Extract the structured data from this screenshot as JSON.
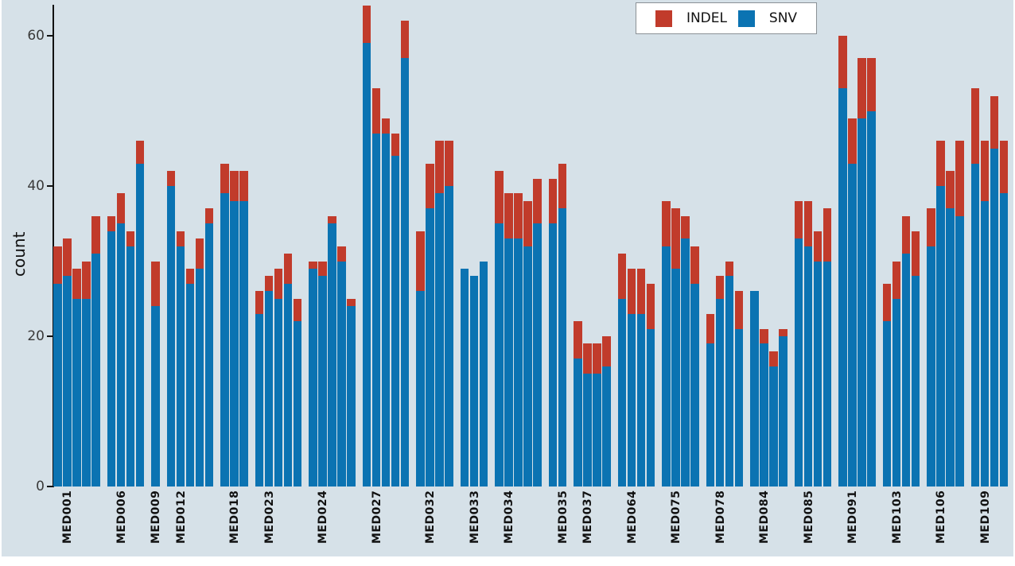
{
  "colors": {
    "background": "#d6e1e8",
    "indel": "#c13b2b",
    "snv": "#0b73b2",
    "axis": "#111111"
  },
  "legend": {
    "indel_label": "INDEL",
    "snv_label": "SNV"
  },
  "chart_data": {
    "type": "bar",
    "stacked": true,
    "title": "",
    "xlabel": "",
    "ylabel": "count",
    "ylim": [
      0,
      65
    ],
    "y_ticks": [
      0,
      20,
      40,
      60
    ],
    "grid": false,
    "legend_position": "top-right",
    "series_names": [
      "SNV",
      "INDEL"
    ],
    "groups": [
      {
        "label": "MED001",
        "bars": [
          {
            "snv": 27,
            "indel": 5
          },
          {
            "snv": 28,
            "indel": 5
          },
          {
            "snv": 25,
            "indel": 4
          },
          {
            "snv": 25,
            "indel": 5
          },
          {
            "snv": 31,
            "indel": 5
          }
        ]
      },
      {
        "label": "MED006",
        "bars": [
          {
            "snv": 34,
            "indel": 2
          },
          {
            "snv": 35,
            "indel": 4
          },
          {
            "snv": 32,
            "indel": 2
          },
          {
            "snv": 43,
            "indel": 3
          }
        ]
      },
      {
        "label": "MED009",
        "bars": [
          {
            "snv": 24,
            "indel": 6
          }
        ]
      },
      {
        "label": "MED012",
        "bars": [
          {
            "snv": 40,
            "indel": 2
          },
          {
            "snv": 32,
            "indel": 2
          },
          {
            "snv": 27,
            "indel": 2
          },
          {
            "snv": 29,
            "indel": 4
          },
          {
            "snv": 35,
            "indel": 2
          }
        ]
      },
      {
        "label": "MED018",
        "bars": [
          {
            "snv": 39,
            "indel": 4
          },
          {
            "snv": 38,
            "indel": 4
          },
          {
            "snv": 38,
            "indel": 4
          }
        ]
      },
      {
        "label": "MED023",
        "bars": [
          {
            "snv": 23,
            "indel": 3
          },
          {
            "snv": 26,
            "indel": 2
          },
          {
            "snv": 25,
            "indel": 4
          },
          {
            "snv": 27,
            "indel": 4
          },
          {
            "snv": 22,
            "indel": 3
          }
        ]
      },
      {
        "label": "MED024",
        "bars": [
          {
            "snv": 29,
            "indel": 1
          },
          {
            "snv": 28,
            "indel": 2
          },
          {
            "snv": 35,
            "indel": 1
          },
          {
            "snv": 30,
            "indel": 2
          },
          {
            "snv": 24,
            "indel": 1
          }
        ]
      },
      {
        "label": "MED027",
        "bars": [
          {
            "snv": 59,
            "indel": 5
          },
          {
            "snv": 47,
            "indel": 6
          },
          {
            "snv": 47,
            "indel": 2
          },
          {
            "snv": 44,
            "indel": 3
          },
          {
            "snv": 57,
            "indel": 5
          }
        ]
      },
      {
        "label": "MED032",
        "bars": [
          {
            "snv": 26,
            "indel": 8
          },
          {
            "snv": 37,
            "indel": 6
          },
          {
            "snv": 39,
            "indel": 7
          },
          {
            "snv": 40,
            "indel": 6
          }
        ]
      },
      {
        "label": "MED033",
        "bars": [
          {
            "snv": 29,
            "indel": 0
          },
          {
            "snv": 28,
            "indel": 0
          },
          {
            "snv": 30,
            "indel": 0
          }
        ]
      },
      {
        "label": "MED034",
        "bars": [
          {
            "snv": 35,
            "indel": 7
          },
          {
            "snv": 33,
            "indel": 6
          },
          {
            "snv": 33,
            "indel": 6
          },
          {
            "snv": 32,
            "indel": 6
          },
          {
            "snv": 35,
            "indel": 6
          }
        ]
      },
      {
        "label": "MED035",
        "bars": [
          {
            "snv": 35,
            "indel": 6
          },
          {
            "snv": 37,
            "indel": 6
          }
        ]
      },
      {
        "label": "MED037",
        "bars": [
          {
            "snv": 17,
            "indel": 5
          },
          {
            "snv": 15,
            "indel": 4
          },
          {
            "snv": 15,
            "indel": 4
          },
          {
            "snv": 16,
            "indel": 4
          }
        ]
      },
      {
        "label": "MED064",
        "bars": [
          {
            "snv": 25,
            "indel": 6
          },
          {
            "snv": 23,
            "indel": 6
          },
          {
            "snv": 23,
            "indel": 6
          },
          {
            "snv": 21,
            "indel": 6
          }
        ]
      },
      {
        "label": "MED075",
        "bars": [
          {
            "snv": 32,
            "indel": 6
          },
          {
            "snv": 29,
            "indel": 8
          },
          {
            "snv": 33,
            "indel": 3
          },
          {
            "snv": 27,
            "indel": 5
          }
        ]
      },
      {
        "label": "MED078",
        "bars": [
          {
            "snv": 19,
            "indel": 4
          },
          {
            "snv": 25,
            "indel": 3
          },
          {
            "snv": 28,
            "indel": 2
          },
          {
            "snv": 21,
            "indel": 5
          }
        ]
      },
      {
        "label": "MED084",
        "bars": [
          {
            "snv": 26,
            "indel": 0
          },
          {
            "snv": 19,
            "indel": 2
          },
          {
            "snv": 16,
            "indel": 2
          },
          {
            "snv": 20,
            "indel": 1
          }
        ]
      },
      {
        "label": "MED085",
        "bars": [
          {
            "snv": 33,
            "indel": 5
          },
          {
            "snv": 32,
            "indel": 6
          },
          {
            "snv": 30,
            "indel": 4
          },
          {
            "snv": 30,
            "indel": 7
          }
        ]
      },
      {
        "label": "MED091",
        "bars": [
          {
            "snv": 53,
            "indel": 7
          },
          {
            "snv": 43,
            "indel": 6
          },
          {
            "snv": 49,
            "indel": 8
          },
          {
            "snv": 50,
            "indel": 7
          }
        ]
      },
      {
        "label": "MED103",
        "bars": [
          {
            "snv": 22,
            "indel": 5
          },
          {
            "snv": 25,
            "indel": 5
          },
          {
            "snv": 31,
            "indel": 5
          },
          {
            "snv": 28,
            "indel": 6
          }
        ]
      },
      {
        "label": "MED106",
        "bars": [
          {
            "snv": 32,
            "indel": 5
          },
          {
            "snv": 40,
            "indel": 6
          },
          {
            "snv": 37,
            "indel": 5
          },
          {
            "snv": 36,
            "indel": 10
          }
        ]
      },
      {
        "label": "MED109",
        "bars": [
          {
            "snv": 43,
            "indel": 10
          },
          {
            "snv": 38,
            "indel": 8
          },
          {
            "snv": 45,
            "indel": 7
          },
          {
            "snv": 39,
            "indel": 7
          }
        ]
      }
    ]
  }
}
